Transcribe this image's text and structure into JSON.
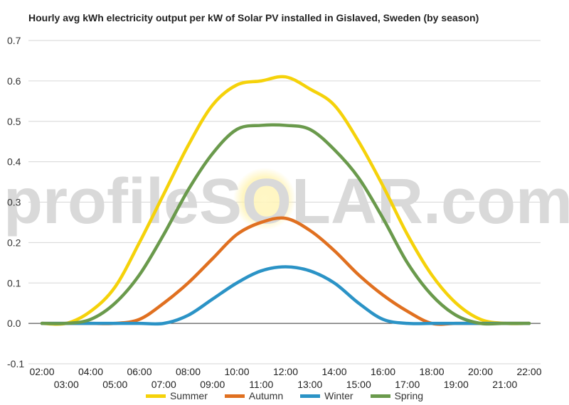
{
  "chart_data": {
    "type": "line",
    "title": "Hourly avg kWh electricity output per kW of Solar PV installed in Gislaved, Sweden (by season)",
    "watermark": "profileSOLAR.com",
    "xlabel": "",
    "ylabel": "",
    "ylim": [
      -0.1,
      0.7
    ],
    "yticks": [
      "0.7",
      "0.6",
      "0.5",
      "0.4",
      "0.3",
      "0.2",
      "0.1",
      "0.0",
      "-0.1"
    ],
    "ytick_values": [
      0.7,
      0.6,
      0.5,
      0.4,
      0.3,
      0.2,
      0.1,
      0.0,
      -0.1
    ],
    "x": [
      "02:00",
      "03:00",
      "04:00",
      "05:00",
      "06:00",
      "07:00",
      "08:00",
      "09:00",
      "10:00",
      "11:00",
      "12:00",
      "13:00",
      "14:00",
      "15:00",
      "16:00",
      "17:00",
      "18:00",
      "19:00",
      "20:00",
      "21:00",
      "22:00"
    ],
    "grid": true,
    "legend_position": "bottom",
    "series": [
      {
        "name": "Summer",
        "color": "#f5d20a",
        "values": [
          0.0,
          0.0,
          0.03,
          0.09,
          0.2,
          0.32,
          0.44,
          0.54,
          0.59,
          0.6,
          0.61,
          0.58,
          0.54,
          0.45,
          0.34,
          0.22,
          0.12,
          0.05,
          0.01,
          0.0,
          0.0
        ]
      },
      {
        "name": "Autumn",
        "color": "#e07020",
        "values": [
          0.0,
          0.0,
          0.0,
          0.0,
          0.01,
          0.05,
          0.1,
          0.16,
          0.22,
          0.25,
          0.26,
          0.23,
          0.18,
          0.12,
          0.07,
          0.03,
          0.0,
          0.0,
          0.0,
          0.0,
          0.0
        ]
      },
      {
        "name": "Winter",
        "color": "#2b93c6",
        "values": [
          0.0,
          0.0,
          0.0,
          0.0,
          0.0,
          0.0,
          0.02,
          0.06,
          0.1,
          0.13,
          0.14,
          0.13,
          0.1,
          0.05,
          0.01,
          0.0,
          0.0,
          0.0,
          0.0,
          0.0,
          0.0
        ]
      },
      {
        "name": "Spring",
        "color": "#6a9a4c",
        "values": [
          0.0,
          0.0,
          0.01,
          0.05,
          0.12,
          0.22,
          0.33,
          0.42,
          0.48,
          0.49,
          0.49,
          0.48,
          0.43,
          0.36,
          0.26,
          0.15,
          0.07,
          0.02,
          0.0,
          0.0,
          0.0
        ]
      }
    ]
  }
}
